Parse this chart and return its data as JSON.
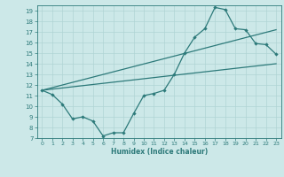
{
  "xlabel": "Humidex (Indice chaleur)",
  "bg_color": "#cce8e8",
  "line_color": "#2d7a7a",
  "grid_color": "#b0d4d4",
  "xlim": [
    -0.5,
    23.5
  ],
  "ylim": [
    7,
    19.5
  ],
  "xticks": [
    0,
    1,
    2,
    3,
    4,
    5,
    6,
    7,
    8,
    9,
    10,
    11,
    12,
    13,
    14,
    15,
    16,
    17,
    18,
    19,
    20,
    21,
    22,
    23
  ],
  "yticks": [
    7,
    8,
    9,
    10,
    11,
    12,
    13,
    14,
    15,
    16,
    17,
    18,
    19
  ],
  "line1_x": [
    0,
    1,
    2,
    3,
    4,
    5,
    6,
    7,
    8,
    9,
    10,
    11,
    12,
    13,
    14,
    15,
    16,
    17,
    18,
    19,
    20,
    21,
    22,
    23
  ],
  "line1_y": [
    11.5,
    11.1,
    10.2,
    8.8,
    9.0,
    8.6,
    7.2,
    7.5,
    7.5,
    9.3,
    11.0,
    11.2,
    11.5,
    13.0,
    15.0,
    16.5,
    17.3,
    19.3,
    19.1,
    17.3,
    17.2,
    15.9,
    15.8,
    14.9
  ],
  "line2_x": [
    0,
    23
  ],
  "line2_y": [
    11.5,
    14.0
  ],
  "line3_x": [
    0,
    23
  ],
  "line3_y": [
    11.5,
    17.2
  ]
}
